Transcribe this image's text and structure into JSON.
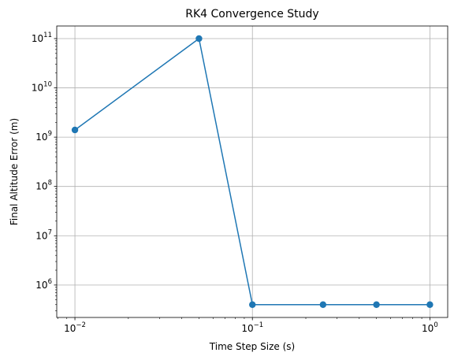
{
  "chart_data": {
    "type": "line",
    "title": "RK4 Convergence Study",
    "xlabel": "Time Step Size (s)",
    "ylabel": "Final Altitude Error (m)",
    "x_scale": "log",
    "y_scale": "log",
    "xlim": [
      0.0079,
      1.26
    ],
    "ylim": [
      220000,
      180000000000
    ],
    "grid": true,
    "x_ticks": [
      {
        "value": 0.01,
        "base": "10",
        "exp": "−2"
      },
      {
        "value": 0.1,
        "base": "10",
        "exp": "−1"
      },
      {
        "value": 1,
        "base": "10",
        "exp": "0"
      }
    ],
    "y_ticks": [
      {
        "value": 1000000,
        "base": "10",
        "exp": "6"
      },
      {
        "value": 10000000,
        "base": "10",
        "exp": "7"
      },
      {
        "value": 100000000,
        "base": "10",
        "exp": "8"
      },
      {
        "value": 1000000000,
        "base": "10",
        "exp": "9"
      },
      {
        "value": 10000000000,
        "base": "10",
        "exp": "10"
      },
      {
        "value": 100000000000,
        "base": "10",
        "exp": "11"
      }
    ],
    "series": [
      {
        "color": "#1f77b4",
        "marker": "circle",
        "x": [
          0.01,
          0.05,
          0.1,
          0.25,
          0.5,
          1.0
        ],
        "y": [
          1400000000,
          100000000000,
          400000,
          400000,
          400000,
          400000
        ]
      }
    ]
  }
}
